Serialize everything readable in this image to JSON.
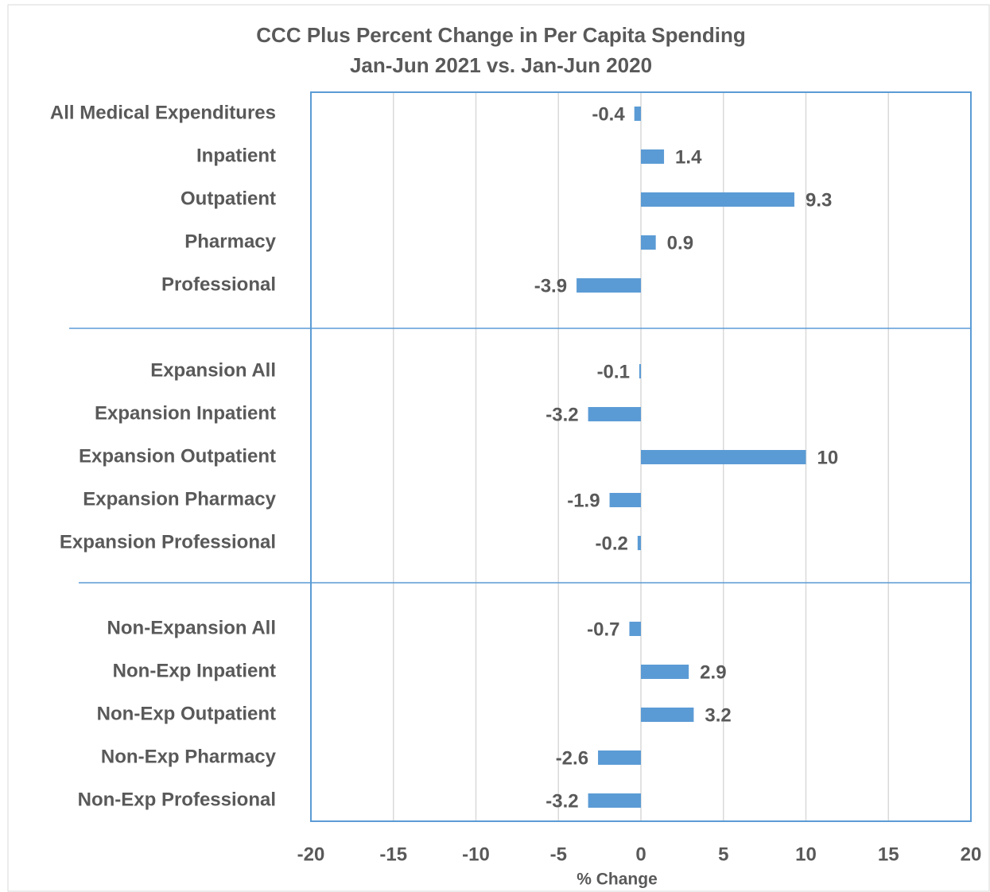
{
  "chart_data": {
    "type": "hbar",
    "title": "CCC Plus Percent Change in Per Capita Spending",
    "subtitle": "Jan-Jun 2021 vs. Jan-Jun 2020",
    "x_label": "% Change",
    "categories": [
      "All Medical Expenditures",
      "Inpatient",
      "Outpatient",
      "Pharmacy",
      "Professional",
      "Expansion All",
      "Expansion Inpatient",
      "Expansion Outpatient",
      "Expansion Pharmacy",
      "Expansion Professional",
      "Non-Expansion All",
      "Non-Exp Inpatient",
      "Non-Exp Outpatient",
      "Non-Exp Pharmacy",
      "Non-Exp Professional"
    ],
    "values": [
      -0.4,
      1.4,
      9.3,
      0.9,
      -3.9,
      -0.1,
      -3.2,
      10,
      -1.9,
      -0.2,
      -0.7,
      2.9,
      3.2,
      -2.6,
      -3.2
    ],
    "color": "#5b9bd5",
    "xlim": [
      -20,
      20
    ],
    "xticks": [
      -20,
      -15,
      -10,
      -5,
      0,
      5,
      10,
      15,
      20
    ],
    "grid": true
  }
}
